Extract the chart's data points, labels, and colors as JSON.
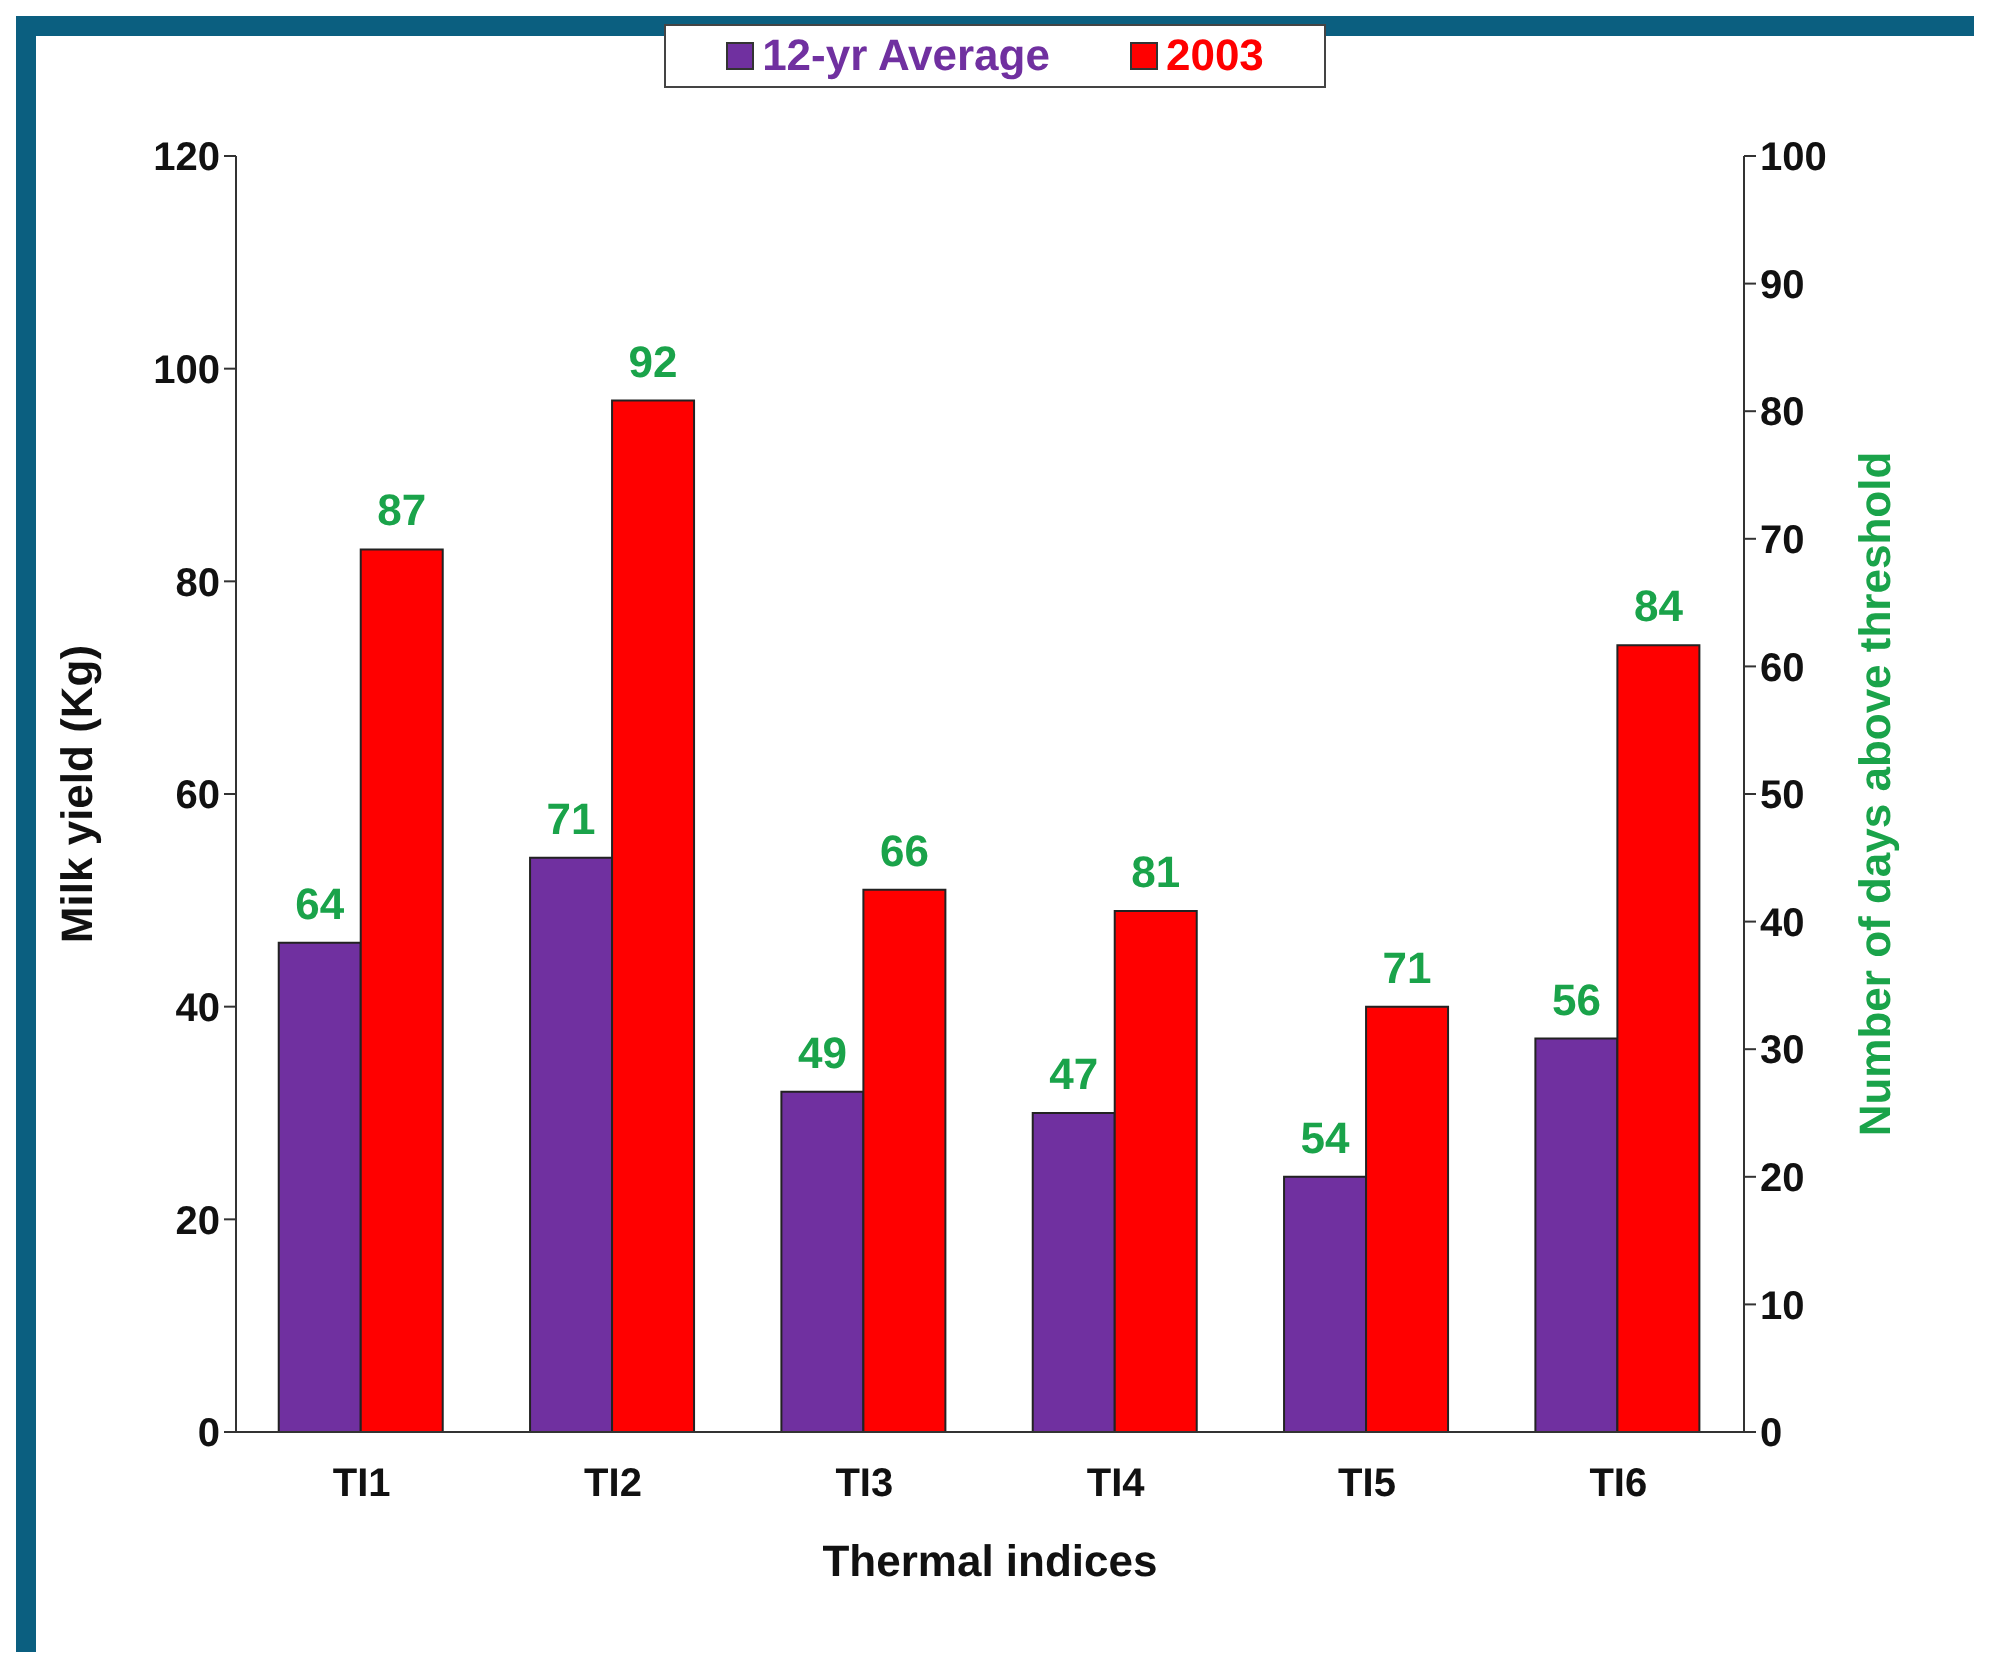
{
  "chart_data": {
    "type": "bar",
    "xlabel": "Thermal indices",
    "ylabel": "Milk yield (Kg)",
    "y2label": "Number of days above threshold",
    "categories": [
      "TI1",
      "TI2",
      "TI3",
      "TI4",
      "TI5",
      "TI6"
    ],
    "series": [
      {
        "name": "12-yr Average",
        "color": "#7030a0",
        "values": [
          46,
          54,
          32,
          30,
          24,
          37
        ]
      },
      {
        "name": "2003",
        "color": "#ff0000",
        "values": [
          83,
          97,
          51,
          49,
          40,
          74
        ]
      }
    ],
    "ylim": [
      0,
      120
    ],
    "yticks": [
      0,
      20,
      40,
      60,
      80,
      100,
      120
    ],
    "y2lim": [
      0,
      100
    ],
    "y2ticks": [
      0,
      10,
      20,
      30,
      40,
      50,
      60,
      70,
      80,
      90,
      100
    ],
    "annotations": [
      {
        "text": "64",
        "x": "TI1",
        "y": 46
      },
      {
        "text": "87",
        "x": "TI1",
        "y": 83
      },
      {
        "text": "71",
        "x": "TI2",
        "y": 54
      },
      {
        "text": "92",
        "x": "TI2",
        "y": 97
      },
      {
        "text": "49",
        "x": "TI3",
        "y": 32
      },
      {
        "text": "66",
        "x": "TI3",
        "y": 51
      },
      {
        "text": "47",
        "x": "TI4",
        "y": 30
      },
      {
        "text": "81",
        "x": "TI4",
        "y": 49
      },
      {
        "text": "54",
        "x": "TI5",
        "y": 24
      },
      {
        "text": "71",
        "x": "TI5",
        "y": 40
      },
      {
        "text": "56",
        "x": "TI6",
        "y": 37
      },
      {
        "text": "84",
        "x": "TI6",
        "y": 74
      }
    ],
    "legend": "top",
    "grid": false
  }
}
